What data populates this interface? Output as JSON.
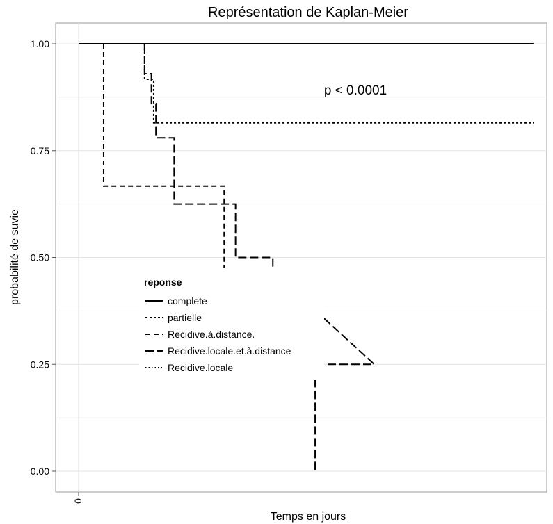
{
  "chart_data": {
    "type": "line",
    "title": "Représentation de Kaplan-Meier",
    "xlabel": "Temps en jours",
    "ylabel": "probabilité de suvie",
    "ylim": [
      0,
      1
    ],
    "xlim": [
      -0.04,
      1.02
    ],
    "y_ticks": [
      "0.00",
      "0.25",
      "0.50",
      "0.75",
      "1.00"
    ],
    "x_ticks": [
      "0"
    ],
    "grid": true,
    "annotation": "p < 0.0001",
    "legend": {
      "title": "reponse",
      "placement": "inside",
      "entries": [
        "complete",
        "partielle",
        "Recidive.à.distance.",
        "Recidive.locale.et.à.distance",
        "Recidive.locale"
      ]
    },
    "series": [
      {
        "name": "complete",
        "dash": "solid",
        "x": [
          0,
          1
        ],
        "y": [
          1.0,
          1.0
        ]
      },
      {
        "name": "partielle",
        "dash": "short-dash",
        "x": [
          0.145,
          0.145,
          0.165,
          0.165,
          1.0
        ],
        "y": [
          1.0,
          0.917,
          0.917,
          0.815,
          0.815
        ]
      },
      {
        "name": "Recidive.à.distance.",
        "dash": "dash",
        "x": [
          0.055,
          0.055,
          0.32,
          0.32
        ],
        "y": [
          1.0,
          0.667,
          0.667,
          0.476
        ]
      },
      {
        "name": "Recidive.locale.et.à.distance",
        "dash": "long-dash",
        "x": [
          0.145,
          0.145,
          0.16,
          0.16,
          0.17,
          0.17,
          0.21,
          0.21,
          0.345,
          0.345,
          0.427,
          0.427,
          0.65,
          0.52,
          0.52
        ],
        "y": [
          1.0,
          0.93,
          0.93,
          0.86,
          0.86,
          0.78,
          0.78,
          0.625,
          0.625,
          0.5,
          0.5,
          0.467,
          0.25,
          0.25,
          0.0
        ]
      },
      {
        "name": "Recidive.locale",
        "dash": "dot",
        "x": [],
        "y": []
      }
    ]
  }
}
